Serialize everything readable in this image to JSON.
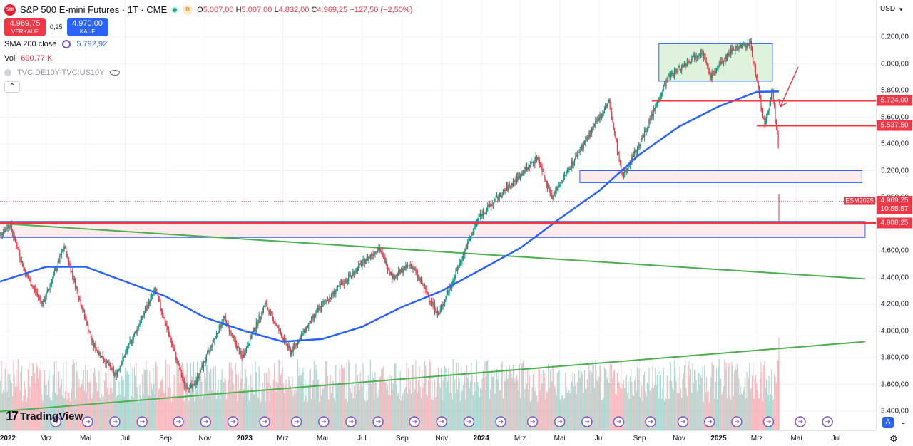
{
  "header": {
    "symbol_icon_text": "500",
    "title": "S&P 500 E-mini Futures · 1T · CME",
    "d_badge": "D",
    "ohlc": {
      "o_label": "O",
      "o": "5.007,00",
      "h_label": "H",
      "h": "5.007,00",
      "l_label": "L",
      "l": "4.832,00",
      "c_label": "C",
      "c": "4.969,25",
      "change": "−127,50 (−2,50%)"
    },
    "sell": {
      "price": "4.969,75",
      "label": "VERKAUF"
    },
    "buy": {
      "price": "4.970,00",
      "label": "KAUF"
    },
    "spread": "0,25",
    "indicators": [
      {
        "name": "SMA 200 close",
        "value": "5.792,92",
        "color": "#2962ff"
      },
      {
        "name": "Vol",
        "value": "690,77 K",
        "color": "#f23645"
      },
      {
        "name": "TVC:DE10Y-TVC:US10Y",
        "value": "",
        "color": "#9598a1"
      }
    ],
    "collapse_glyph": "⌃"
  },
  "currency": "USD",
  "currency_chevron": "▾",
  "logo_text": "TradingView",
  "logo_mark": "17",
  "scale_buttons": {
    "auto": "A",
    "log": "L"
  },
  "settings_glyph": "⚙",
  "esm_tag": "ESM2025",
  "price_tags": [
    {
      "value": "5.724,00",
      "color": "#f23645"
    },
    {
      "value": "5.537,50",
      "color": "#f23645"
    },
    {
      "value": "4.969,25",
      "sub": "10:55:57",
      "color": "#f23645"
    },
    {
      "value": "4.808,25",
      "color": "#f23645"
    }
  ],
  "colors": {
    "up": "#089981",
    "down": "#f23645",
    "sma": "#2962ff",
    "trend": "#4caf50",
    "zone_red": "#f23645",
    "zone_fill": "#fbe9e9",
    "box_fill": "#d8f0d6",
    "box_border": "#2962ff"
  },
  "chart_data": {
    "type": "candlestick",
    "title": "S&P 500 E-mini Futures · 1T · CME",
    "y_ticks": [
      "6.200,00",
      "6.000,00",
      "5.800,00",
      "5.600,00",
      "5.400,00",
      "5.200,00",
      "5.000,00",
      "4.800,00",
      "4.600,00",
      "4.400,00",
      "4.200,00",
      "4.000,00",
      "3.800,00",
      "3.600,00",
      "3.400,00"
    ],
    "ylim": [
      3300,
      6350
    ],
    "x_ticks": [
      {
        "label": "2022",
        "year": true,
        "date": "2022-01"
      },
      {
        "label": "Mrz",
        "date": "2022-03"
      },
      {
        "label": "Mai",
        "date": "2022-05"
      },
      {
        "label": "Jul",
        "date": "2022-07"
      },
      {
        "label": "Sep",
        "date": "2022-09"
      },
      {
        "label": "Nov",
        "date": "2022-11"
      },
      {
        "label": "2023",
        "year": true,
        "date": "2023-01"
      },
      {
        "label": "Mrz",
        "date": "2023-03"
      },
      {
        "label": "Mai",
        "date": "2023-05"
      },
      {
        "label": "Jul",
        "date": "2023-07"
      },
      {
        "label": "Sep",
        "date": "2023-09"
      },
      {
        "label": "Nov",
        "date": "2023-11"
      },
      {
        "label": "2024",
        "year": true,
        "date": "2024-01"
      },
      {
        "label": "Mrz",
        "date": "2024-03"
      },
      {
        "label": "Mai",
        "date": "2024-05"
      },
      {
        "label": "Jul",
        "date": "2024-07"
      },
      {
        "label": "Sep",
        "date": "2024-09"
      },
      {
        "label": "Nov",
        "date": "2024-11"
      },
      {
        "label": "2025",
        "year": true,
        "date": "2025-01"
      },
      {
        "label": "Mrz",
        "date": "2025-03"
      },
      {
        "label": "Mai",
        "date": "2025-05"
      },
      {
        "label": "Jul",
        "date": "2025-07"
      }
    ],
    "xlim": [
      "2021-12",
      "2025-08"
    ],
    "price_path": [
      [
        "2021-12-15",
        4700
      ],
      [
        "2022-01-04",
        4800
      ],
      [
        "2022-01-28",
        4430
      ],
      [
        "2022-02-24",
        4200
      ],
      [
        "2022-03-29",
        4630
      ],
      [
        "2022-05-12",
        3900
      ],
      [
        "2022-06-16",
        3670
      ],
      [
        "2022-08-16",
        4310
      ],
      [
        "2022-09-30",
        3600
      ],
      [
        "2022-10-13",
        3570
      ],
      [
        "2022-11-30",
        4100
      ],
      [
        "2022-12-28",
        3800
      ],
      [
        "2023-02-02",
        4200
      ],
      [
        "2023-03-13",
        3840
      ],
      [
        "2023-04-28",
        4180
      ],
      [
        "2023-06-30",
        4500
      ],
      [
        "2023-07-27",
        4620
      ],
      [
        "2023-08-18",
        4400
      ],
      [
        "2023-09-15",
        4500
      ],
      [
        "2023-10-27",
        4120
      ],
      [
        "2023-12-28",
        4850
      ],
      [
        "2024-03-28",
        5300
      ],
      [
        "2024-04-19",
        5000
      ],
      [
        "2024-07-16",
        5720
      ],
      [
        "2024-08-05",
        5150
      ],
      [
        "2024-09-06",
        5450
      ],
      [
        "2024-10-15",
        5900
      ],
      [
        "2024-12-06",
        6100
      ],
      [
        "2024-12-19",
        5900
      ],
      [
        "2025-01-24",
        6120
      ],
      [
        "2025-02-19",
        6150
      ],
      [
        "2025-03-13",
        5530
      ],
      [
        "2025-03-25",
        5800
      ],
      [
        "2025-04-03",
        5400
      ],
      [
        "2025-04-04",
        4969.25
      ]
    ],
    "series": [
      {
        "name": "SMA 200 close",
        "last": 5792.92,
        "points": [
          [
            "2021-12-01",
            4340
          ],
          [
            "2022-03-01",
            4480
          ],
          [
            "2022-05-01",
            4480
          ],
          [
            "2022-07-01",
            4370
          ],
          [
            "2022-09-01",
            4260
          ],
          [
            "2022-11-01",
            4100
          ],
          [
            "2023-01-01",
            4000
          ],
          [
            "2023-03-01",
            3920
          ],
          [
            "2023-05-01",
            3940
          ],
          [
            "2023-07-01",
            4030
          ],
          [
            "2023-09-01",
            4180
          ],
          [
            "2023-11-01",
            4300
          ],
          [
            "2024-01-01",
            4460
          ],
          [
            "2024-03-01",
            4620
          ],
          [
            "2024-05-01",
            4840
          ],
          [
            "2024-07-01",
            5050
          ],
          [
            "2024-09-01",
            5320
          ],
          [
            "2024-11-01",
            5530
          ],
          [
            "2025-01-01",
            5680
          ],
          [
            "2025-03-01",
            5790
          ],
          [
            "2025-04-04",
            5792.92
          ]
        ]
      },
      {
        "name": "Vol",
        "last_label": "690,77 K"
      }
    ],
    "overlays": {
      "hlines": [
        {
          "y": 5724,
          "from": "2024-09-20",
          "color": "red"
        },
        {
          "y": 5537.5,
          "from": "2025-03-01",
          "color": "red"
        },
        {
          "y": 4808.25,
          "from": "2021-12-01",
          "color": "red",
          "thick": true
        }
      ],
      "zones": [
        {
          "x1": "2024-10-01",
          "x2": "2025-03-25",
          "y1": 5870,
          "y2": 6150,
          "fill": "green"
        },
        {
          "x1": "2024-06-01",
          "x2": "2025-08-10",
          "y1": 5110,
          "y2": 5200,
          "fill": "red"
        },
        {
          "x1": "2021-12-01",
          "x2": "2025-08-15",
          "y1": 4700,
          "y2": 4820,
          "fill": "red"
        }
      ],
      "trendlines": [
        {
          "p1": [
            "2022-01-04",
            4800
          ],
          "p2": [
            "2025-08-15",
            4390
          ],
          "color": "green"
        },
        {
          "p1": [
            "2021-12-01",
            3390
          ],
          "p2": [
            "2025-08-15",
            3920
          ],
          "color": "green"
        }
      ]
    }
  }
}
